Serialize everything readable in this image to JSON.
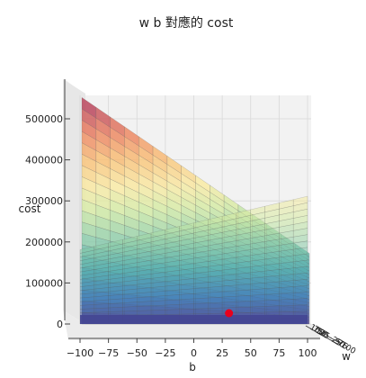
{
  "chart_data": {
    "type": "surface3d",
    "title": "w b 對應的 cost",
    "xlabel": "b",
    "ylabel": "w",
    "zlabel": "cost",
    "xlim": [
      -100,
      100
    ],
    "zlim": [
      0,
      550000
    ],
    "x_ticks": [
      "−100",
      "−75",
      "−50",
      "−25",
      "0",
      "25",
      "50",
      "75",
      "100"
    ],
    "z_ticks": [
      "0",
      "100000",
      "200000",
      "300000",
      "400000",
      "500000"
    ],
    "w_tick_fragments": [
      "100",
      "75",
      "50",
      "25",
      "0",
      "−25",
      "−50",
      "−75",
      "−100"
    ],
    "surface_corners": {
      "left_back": 530000,
      "left_front": 190000,
      "right_back": 150000,
      "right_front": 320000
    },
    "minimum_marker": {
      "b": 27,
      "cost": 0,
      "color": "#e8001c"
    },
    "colormap": "Spectral_r"
  }
}
